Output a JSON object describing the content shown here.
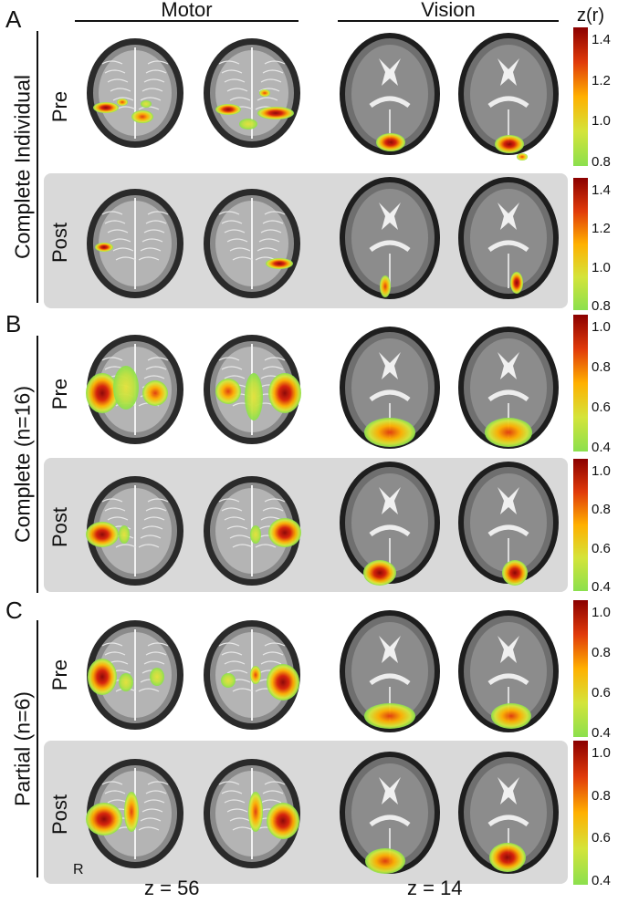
{
  "panels": [
    {
      "letter": "A",
      "group": "Complete Individual"
    },
    {
      "letter": "B",
      "group": "Complete (n=16)"
    },
    {
      "letter": "C",
      "group": "Partial (n=6)"
    }
  ],
  "columns": {
    "motor": "Motor",
    "vision": "Vision"
  },
  "rows": {
    "pre": "Pre",
    "post": "Post"
  },
  "colorbar": {
    "title": "z(r)",
    "a_ticks": [
      "1.4",
      "1.2",
      "1.0",
      "0.8"
    ],
    "bc_ticks": [
      "1.0",
      "0.8",
      "0.6",
      "0.4"
    ],
    "colors": {
      "low": "#8be04e",
      "mid": "#ffb000",
      "high": "#8b0000"
    }
  },
  "slices": {
    "motor": "z = 56",
    "vision": "z = 14"
  },
  "orientation_label": "R"
}
